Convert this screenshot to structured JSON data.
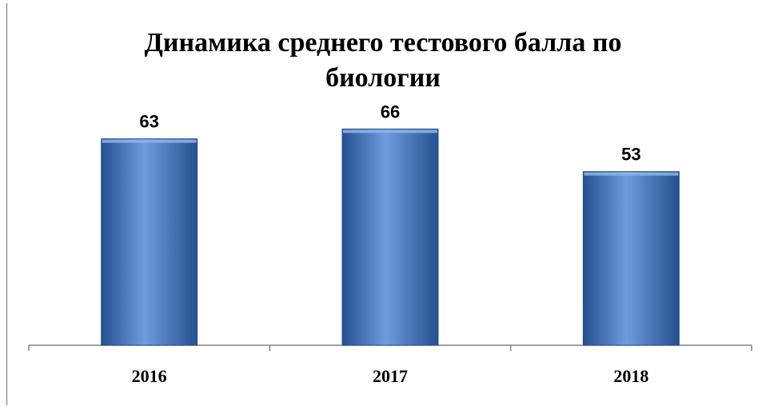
{
  "chart_data": {
    "type": "bar",
    "title": "Динамика  среднего тестового балла по биологии",
    "title_lines": [
      "Динамика  среднего тестового балла по",
      "биологии"
    ],
    "categories": [
      "2016",
      "2017",
      "2018"
    ],
    "values": [
      63,
      66,
      53
    ],
    "data_labels": [
      "63",
      "66",
      "53"
    ],
    "xlabel": "",
    "ylabel": "",
    "ylim": [
      0,
      75
    ],
    "grid": false,
    "legend": "none",
    "bar_color": "#3f73c4",
    "bar_color_light": "#6f9be0",
    "bar_color_dark": "#25508f"
  }
}
